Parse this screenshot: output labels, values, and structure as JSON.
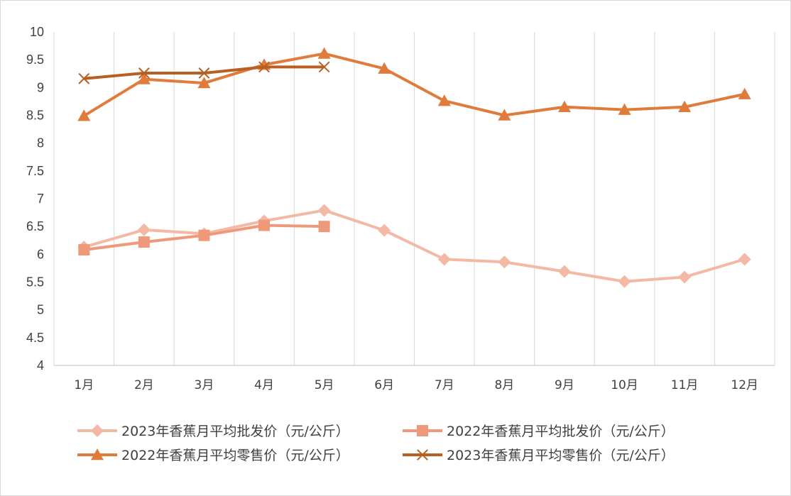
{
  "chart_data": {
    "type": "line",
    "title": "",
    "xlabel": "",
    "ylabel": "",
    "ylim": [
      4,
      10
    ],
    "yticks": [
      "4",
      "4.5",
      "5",
      "5.5",
      "6",
      "6.5",
      "7",
      "7.5",
      "8",
      "8.5",
      "9",
      "9.5",
      "10"
    ],
    "categories": [
      "1月",
      "2月",
      "3月",
      "4月",
      "5月",
      "6月",
      "7月",
      "8月",
      "9月",
      "10月",
      "11月",
      "12月"
    ],
    "grid": "vertical",
    "legend_position": "bottom",
    "series": [
      {
        "name": "2023年香蕉月平均批发价（元/公斤）",
        "color": "#f4b9a4",
        "marker": "diamond",
        "values": [
          6.13,
          6.44,
          6.37,
          6.6,
          6.79,
          6.43,
          5.91,
          5.86,
          5.69,
          5.51,
          5.59,
          5.91
        ]
      },
      {
        "name": "2022年香蕉月平均批发价（元/公斤）",
        "color": "#f0997a",
        "marker": "square",
        "values": [
          6.08,
          6.22,
          6.34,
          6.52,
          6.5,
          null,
          null,
          null,
          null,
          null,
          null,
          null
        ]
      },
      {
        "name": "2022年香蕉月平均零售价（元/公斤）",
        "color": "#e07b3c",
        "marker": "triangle",
        "values": [
          8.49,
          9.15,
          9.08,
          9.41,
          9.61,
          9.34,
          8.76,
          8.5,
          8.65,
          8.6,
          8.65,
          8.88
        ]
      },
      {
        "name": "2023年香蕉月平均零售价（元/公斤）",
        "color": "#b85f22",
        "marker": "x",
        "values": [
          9.16,
          9.26,
          9.26,
          9.37,
          9.37,
          null,
          null,
          null,
          null,
          null,
          null,
          null
        ]
      }
    ]
  }
}
